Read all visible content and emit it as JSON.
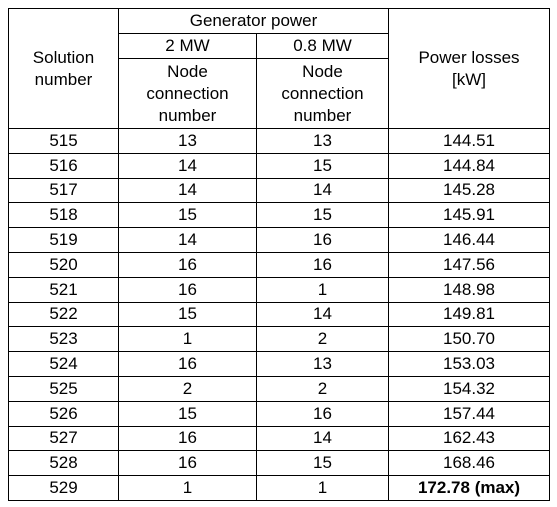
{
  "table": {
    "header": {
      "solution_number": "Solution number",
      "generator_power": "Generator power",
      "gen_1": "2 MW",
      "gen_2": "0.8 MW",
      "node_1": "Node connection number",
      "node_2": "Node connection number",
      "power_losses": "Power losses [kW]"
    },
    "rows": [
      [
        "515",
        "13",
        "13",
        "144.51"
      ],
      [
        "516",
        "14",
        "15",
        "144.84"
      ],
      [
        "517",
        "14",
        "14",
        "145.28"
      ],
      [
        "518",
        "15",
        "15",
        "145.91"
      ],
      [
        "519",
        "14",
        "16",
        "146.44"
      ],
      [
        "520",
        "16",
        "16",
        "147.56"
      ],
      [
        "521",
        "16",
        "1",
        "148.98"
      ],
      [
        "522",
        "15",
        "14",
        "149.81"
      ],
      [
        "523",
        "1",
        "2",
        "150.70"
      ],
      [
        "524",
        "16",
        "13",
        "153.03"
      ],
      [
        "525",
        "2",
        "2",
        "154.32"
      ],
      [
        "526",
        "15",
        "16",
        "157.44"
      ],
      [
        "527",
        "16",
        "14",
        "162.43"
      ],
      [
        "528",
        "16",
        "15",
        "168.46"
      ],
      [
        "529",
        "1",
        "1",
        "172.78 (max)"
      ]
    ]
  }
}
